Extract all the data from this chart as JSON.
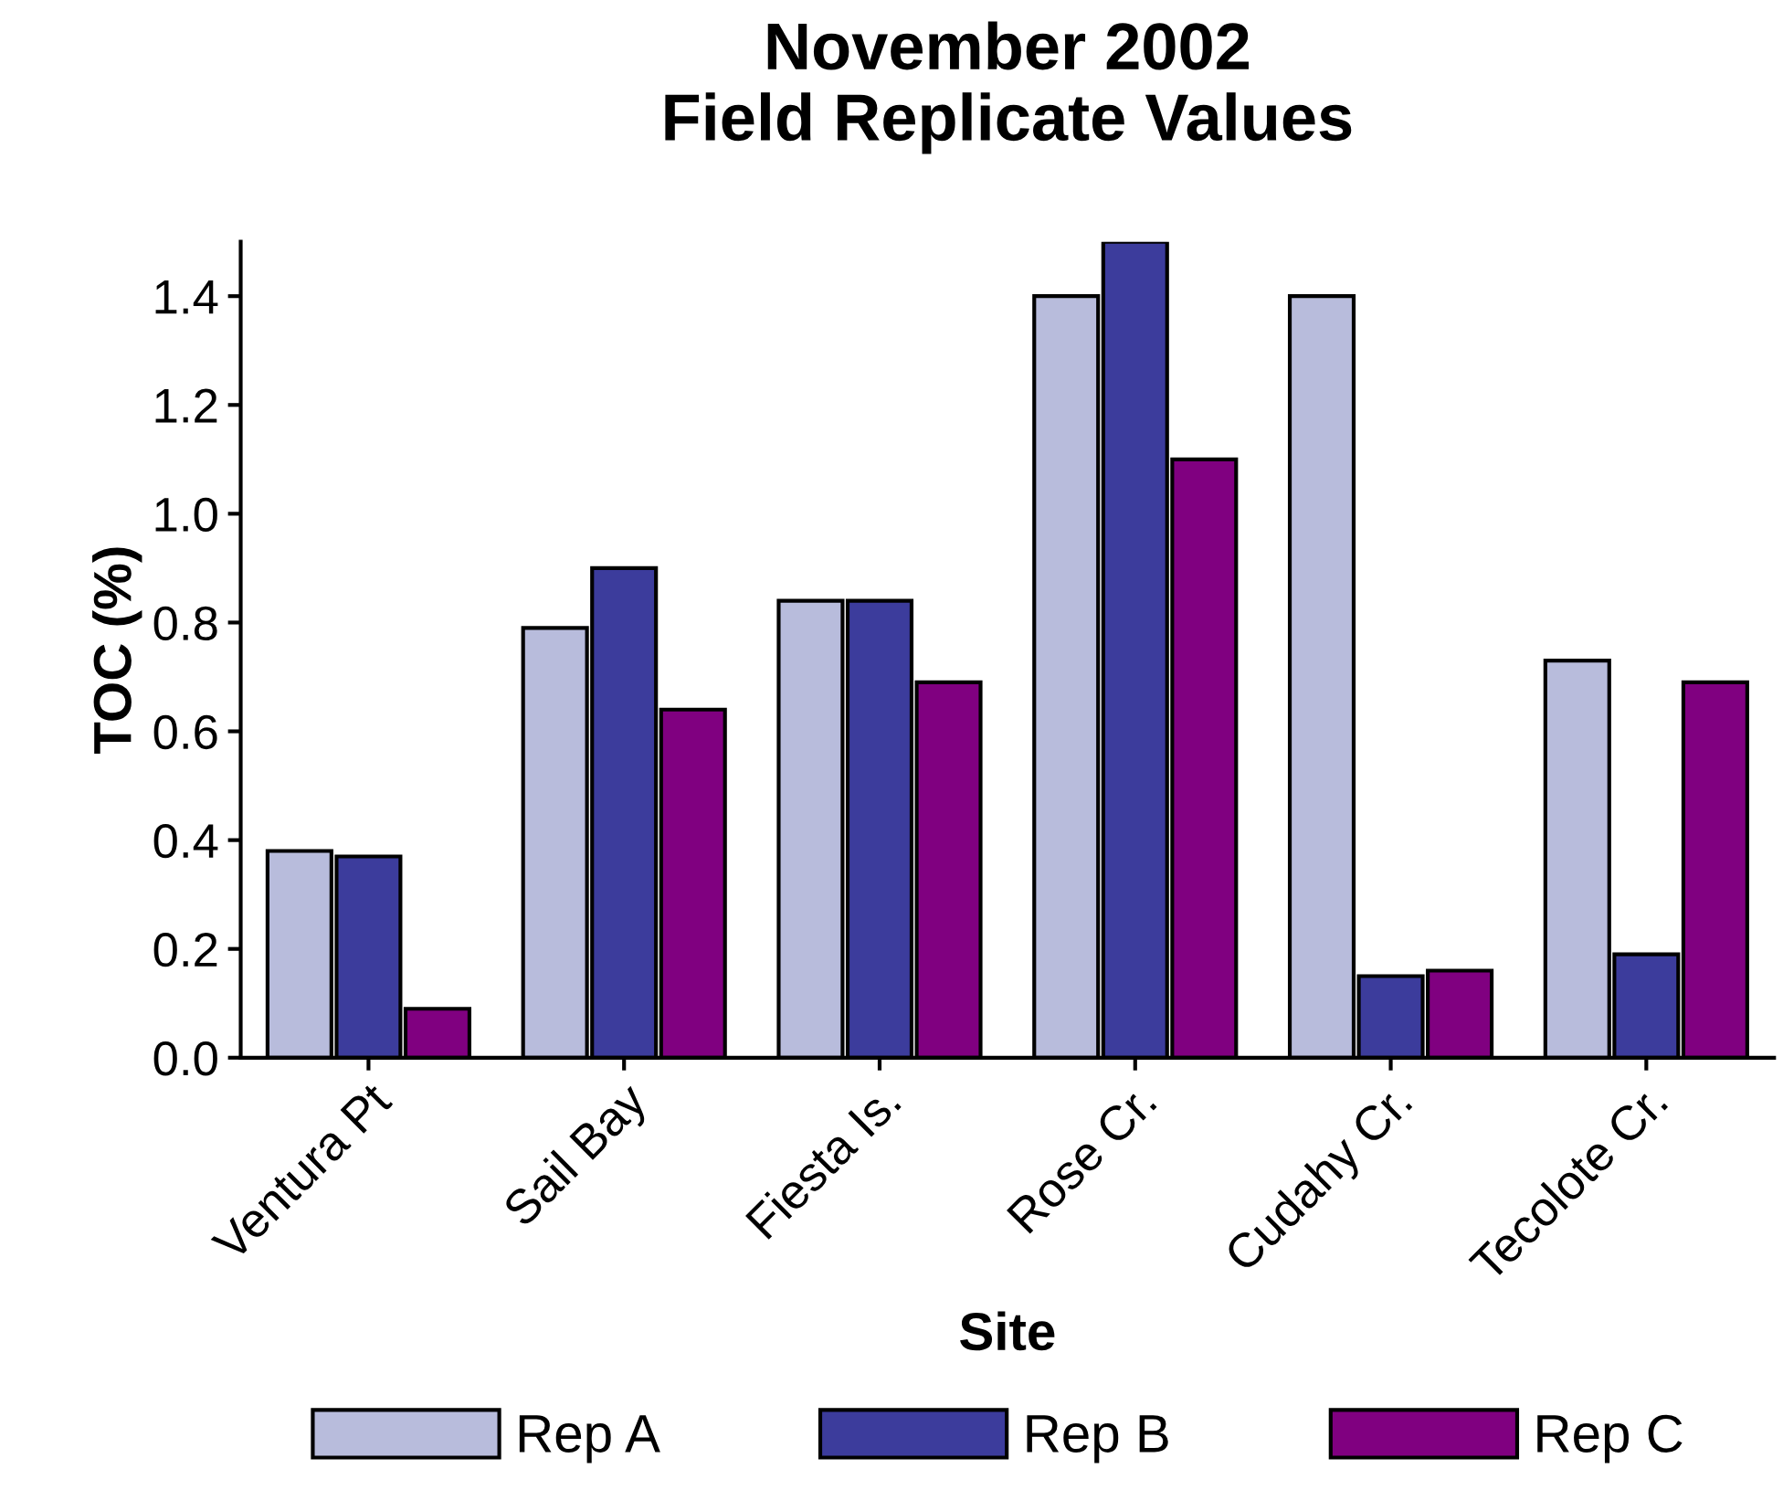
{
  "chart_data": {
    "type": "bar",
    "title": "November 2002\nField Replicate Values",
    "xlabel": "Site",
    "ylabel": "TOC (%)",
    "categories": [
      "Ventura Pt",
      "Sail Bay",
      "Fiesta Is.",
      "Rose Cr.",
      "Cudahy Cr.",
      "Tecolote Cr."
    ],
    "series": [
      {
        "name": "Rep A",
        "color": "#b8bcdc",
        "values": [
          0.38,
          0.79,
          0.84,
          1.4,
          1.4,
          0.73
        ]
      },
      {
        "name": "Rep B",
        "color": "#3c3c9c",
        "values": [
          0.37,
          0.9,
          0.84,
          1.5,
          0.15,
          0.19
        ]
      },
      {
        "name": "Rep C",
        "color": "#800080",
        "values": [
          0.09,
          0.64,
          0.69,
          1.1,
          0.16,
          0.69
        ]
      }
    ],
    "ylim": [
      0,
      1.5
    ],
    "yticks": [
      {
        "value": 0,
        "label": "0.0"
      },
      {
        "value": 0.2,
        "label": "0.2"
      },
      {
        "value": 0.4,
        "label": "0.4"
      },
      {
        "value": 0.6,
        "label": "0.6"
      },
      {
        "value": 0.8,
        "label": "0.8"
      },
      {
        "value": 1.0,
        "label": "1.0"
      },
      {
        "value": 1.2,
        "label": "1.2"
      },
      {
        "value": 1.4,
        "label": "1.4"
      }
    ],
    "grid": false,
    "legend": "bottom"
  }
}
